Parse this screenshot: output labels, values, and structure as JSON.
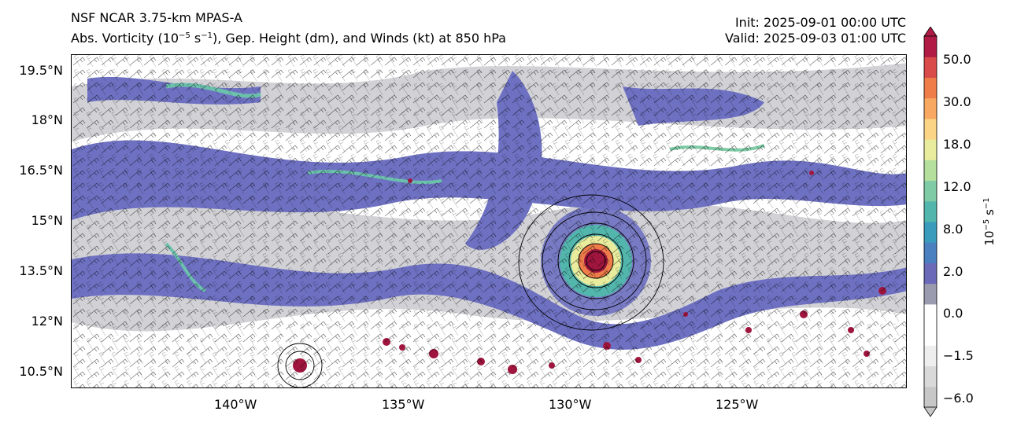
{
  "header": {
    "left_line1": "NSF NCAR 3.75-km MPAS-A",
    "left_line2_pre": "Abs. Vorticity (10",
    "left_line2_exp1": "−5",
    "left_line2_mid": " s",
    "left_line2_exp2": "−1",
    "left_line2_post": "), Gep. Height (dm), and Winds (kt) at 850 hPa",
    "init": "Init: 2025-09-01 00:00 UTC",
    "valid": "Valid: 2025-09-03 01:00 UTC"
  },
  "axes": {
    "lat_labels": [
      "19.5°N",
      "18°N",
      "16.5°N",
      "15°N",
      "13.5°N",
      "12°N",
      "10.5°N"
    ],
    "lon_labels": [
      "140°W",
      "135°W",
      "130°W",
      "125°W"
    ]
  },
  "colorbar": {
    "tick_labels": [
      "50.0",
      "30.0",
      "18.0",
      "12.0",
      "8.0",
      "2.0",
      "0.0",
      "−1.5",
      "−6.0"
    ],
    "unit_base": "10",
    "unit_exp1": "−5",
    "unit_mid": " s",
    "unit_exp2": "−1",
    "colors": [
      "#c7c7c7",
      "#d9d9d9",
      "#eeeeee",
      "#ffffff",
      "#ffffff",
      "#9b9bb0",
      "#6a6ab8",
      "#4a7fc0",
      "#3a9bbd",
      "#53b6ad",
      "#7ecba6",
      "#b4df9c",
      "#e8ec9c",
      "#fbd585",
      "#f8a860",
      "#ee7d4a",
      "#d94a4a",
      "#b01a45"
    ]
  },
  "map_colors": {
    "low": "#a8a8b4",
    "mid": "#6e71c2",
    "teal": "#6cc1ad",
    "high": "#a0153e",
    "sea": "#ffffff"
  }
}
